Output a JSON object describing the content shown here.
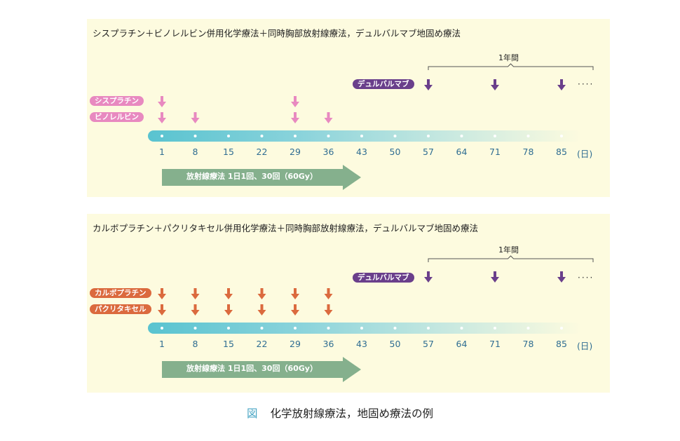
{
  "panels": [
    {
      "title": "シスプラチン＋ビノレルビン併用化学療法＋同時胸部放射線療法，デュルバルマブ地固め療法",
      "drug_a": {
        "label": "シスプラチン",
        "days": [
          1,
          29
        ],
        "color": "#e889c0"
      },
      "drug_b": {
        "label": "ビノレルビン",
        "days": [
          1,
          8,
          29,
          36
        ],
        "color": "#e889c0"
      },
      "durvalumab": {
        "label": "デュルバルマブ",
        "days": [
          57,
          71,
          85
        ],
        "color": "#6a3f8b"
      },
      "year_label": "1年間",
      "ellipsis": "····",
      "ticks": [
        "1",
        "8",
        "15",
        "22",
        "29",
        "36",
        "43",
        "50",
        "57",
        "64",
        "71",
        "78",
        "85"
      ],
      "unit": "(日)",
      "radiation": "放射線療法 1日1回、30回（60Gy）"
    },
    {
      "title": "カルボプラチン＋パクリタキセル併用化学療法＋同時胸部放射線療法，デュルバルマブ地固め療法",
      "drug_a": {
        "label": "カルボプラチン",
        "days": [
          1,
          8,
          15,
          22,
          29,
          36
        ],
        "color": "#db6a3e"
      },
      "drug_b": {
        "label": "パクリタキセル",
        "days": [
          1,
          8,
          15,
          22,
          29,
          36
        ],
        "color": "#db6a3e"
      },
      "durvalumab": {
        "label": "デュルバルマブ",
        "days": [
          57,
          71,
          85
        ],
        "color": "#6a3f8b"
      },
      "year_label": "1年間",
      "ellipsis": "····",
      "ticks": [
        "1",
        "8",
        "15",
        "22",
        "29",
        "36",
        "43",
        "50",
        "57",
        "64",
        "71",
        "78",
        "85"
      ],
      "unit": "(日)",
      "radiation": "放射線療法 1日1回、30回（60Gy）"
    }
  ],
  "caption": {
    "label": "図",
    "text": "化学放射線療法，地固め療法の例"
  }
}
